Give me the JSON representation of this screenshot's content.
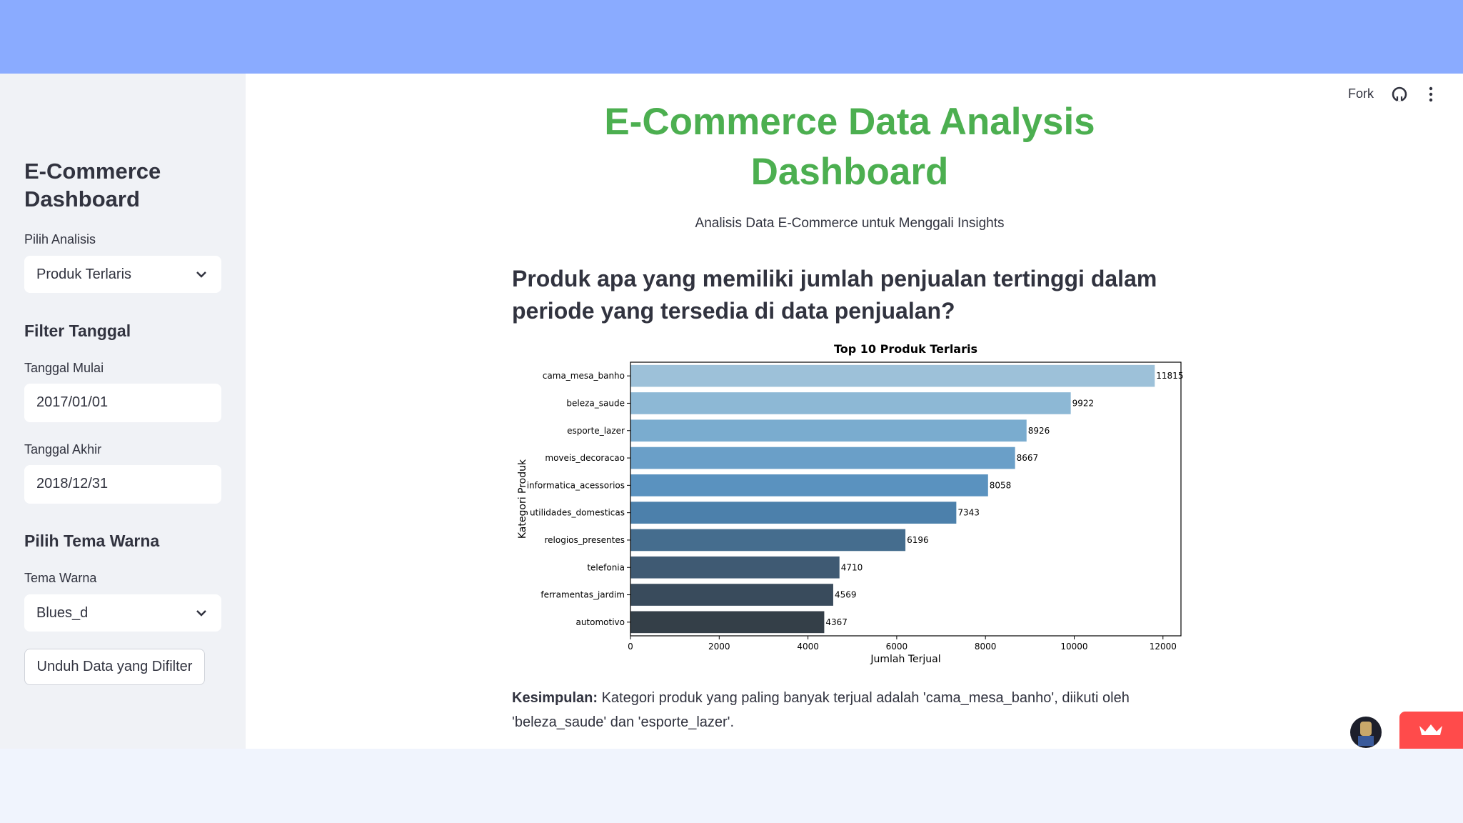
{
  "sidebar": {
    "title": "E-Commerce Dashboard",
    "analysis_label": "Pilih Analisis",
    "analysis_value": "Produk Terlaris",
    "filter_heading": "Filter Tanggal",
    "start_label": "Tanggal Mulai",
    "start_value": "2017/01/01",
    "end_label": "Tanggal Akhir",
    "end_value": "2018/12/31",
    "theme_heading": "Pilih Tema Warna",
    "theme_label": "Tema Warna",
    "theme_value": "Blues_d",
    "download_button": "Unduh Data yang Difilter"
  },
  "toolbar": {
    "fork": "Fork"
  },
  "header": {
    "title": "E-Commerce Data Analysis Dashboard",
    "subtitle": "Analisis Data E-Commerce untuk Menggali Insights"
  },
  "question": "Produk apa yang memiliki jumlah penjualan tertinggi dalam periode yang tersedia di data penjualan?",
  "chart_data": {
    "type": "barh",
    "title": "Top 10 Produk Terlaris",
    "x_label": "Jumlah Terjual",
    "y_label": "Kategori Produk",
    "categories": [
      "cama_mesa_banho",
      "beleza_saude",
      "esporte_lazer",
      "moveis_decoracao",
      "informatica_acessorios",
      "utilidades_domesticas",
      "relogios_presentes",
      "telefonia",
      "ferramentas_jardim",
      "automotivo"
    ],
    "values": [
      11815,
      9922,
      8926,
      8667,
      8058,
      7343,
      6196,
      4710,
      4569,
      4367
    ],
    "colors": [
      "#9dc1d9",
      "#8db8d5",
      "#7aaccf",
      "#6a9fc8",
      "#5a92bf",
      "#4c80ab",
      "#456d8e",
      "#3f5a73",
      "#394b5c",
      "#343f48"
    ],
    "xlim": [
      0,
      12405.75
    ],
    "xticks": [
      0,
      2000,
      4000,
      6000,
      8000,
      10000,
      12000
    ],
    "grid": false
  },
  "conclusion": {
    "label": "Kesimpulan:",
    "text": "Kategori produk yang paling banyak terjual adalah 'cama_mesa_banho', diikuti oleh 'beleza_saude' dan 'esporte_lazer'."
  }
}
